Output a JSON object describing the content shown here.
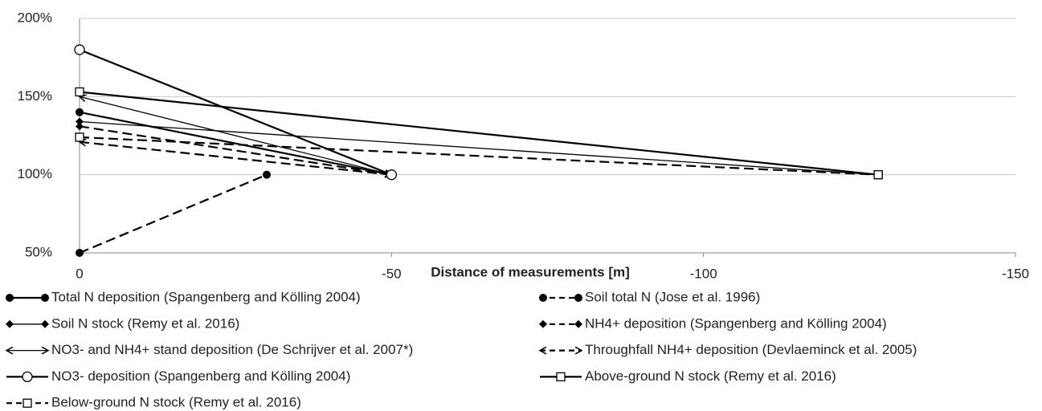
{
  "chart_data": {
    "type": "line",
    "x_label": "Distance of measurements [m]",
    "xlim": [
      0,
      -150
    ],
    "xticks": [
      0,
      -50,
      -100,
      -150
    ],
    "ylim": [
      50,
      200
    ],
    "yticks": [
      {
        "value": 50,
        "label": "50%"
      },
      {
        "value": 100,
        "label": "100%"
      },
      {
        "value": 150,
        "label": "150%"
      },
      {
        "value": 200,
        "label": "200%"
      }
    ],
    "grid": true,
    "legend": "bottom",
    "series": [
      {
        "name": "Total N deposition (Spangenberg and Kölling 2004)",
        "color": "#000000",
        "line_style": "solid",
        "line_weight": "bold",
        "marker": "circle-filled",
        "x": [
          0,
          -50
        ],
        "values": [
          140,
          100
        ]
      },
      {
        "name": "Soil total N (Jose et al. 1996)",
        "color": "#000000",
        "line_style": "dashed",
        "line_weight": "bold",
        "marker": "circle-filled",
        "x": [
          0,
          -30
        ],
        "values": [
          50,
          100
        ]
      },
      {
        "name": "Soil N stock (Remy et al. 2016)",
        "color": "#000000",
        "line_style": "solid",
        "line_weight": "thin",
        "marker": "diamond-filled",
        "x": [
          0,
          -128
        ],
        "values": [
          134,
          100
        ]
      },
      {
        "name": "NH4+ deposition (Spangenberg and Kölling 2004)",
        "color": "#000000",
        "line_style": "dashed",
        "line_weight": "bold",
        "marker": "diamond-filled",
        "x": [
          0,
          -50
        ],
        "values": [
          131,
          100
        ]
      },
      {
        "name": "NO3- and NH4+ stand deposition (De Schrijver et al. 2007*)",
        "color": "#000000",
        "line_style": "solid",
        "line_weight": "thin",
        "marker": "arrow",
        "x": [
          0,
          -50
        ],
        "values": [
          150,
          100
        ]
      },
      {
        "name": "Throughfall NH4+ deposition (Devlaeminck et al. 2005)",
        "color": "#000000",
        "line_style": "dashed",
        "line_weight": "bold",
        "marker": "arrow",
        "x": [
          0,
          -50
        ],
        "values": [
          121,
          100
        ]
      },
      {
        "name": "NO3- deposition (Spangenberg and Kölling 2004)",
        "color": "#000000",
        "line_style": "solid",
        "line_weight": "bold",
        "marker": "circle-open",
        "x": [
          0,
          -50
        ],
        "values": [
          180,
          100
        ]
      },
      {
        "name": "Above-ground N stock (Remy et al. 2016)",
        "color": "#000000",
        "line_style": "solid",
        "line_weight": "bold",
        "marker": "square-open",
        "x": [
          0,
          -128
        ],
        "values": [
          153,
          100
        ]
      },
      {
        "name": "Below-ground N stock (Remy et al. 2016)",
        "color": "#000000",
        "line_style": "dashed",
        "line_weight": "bold",
        "marker": "square-open",
        "x": [
          0,
          -128
        ],
        "values": [
          124,
          100
        ]
      }
    ]
  }
}
